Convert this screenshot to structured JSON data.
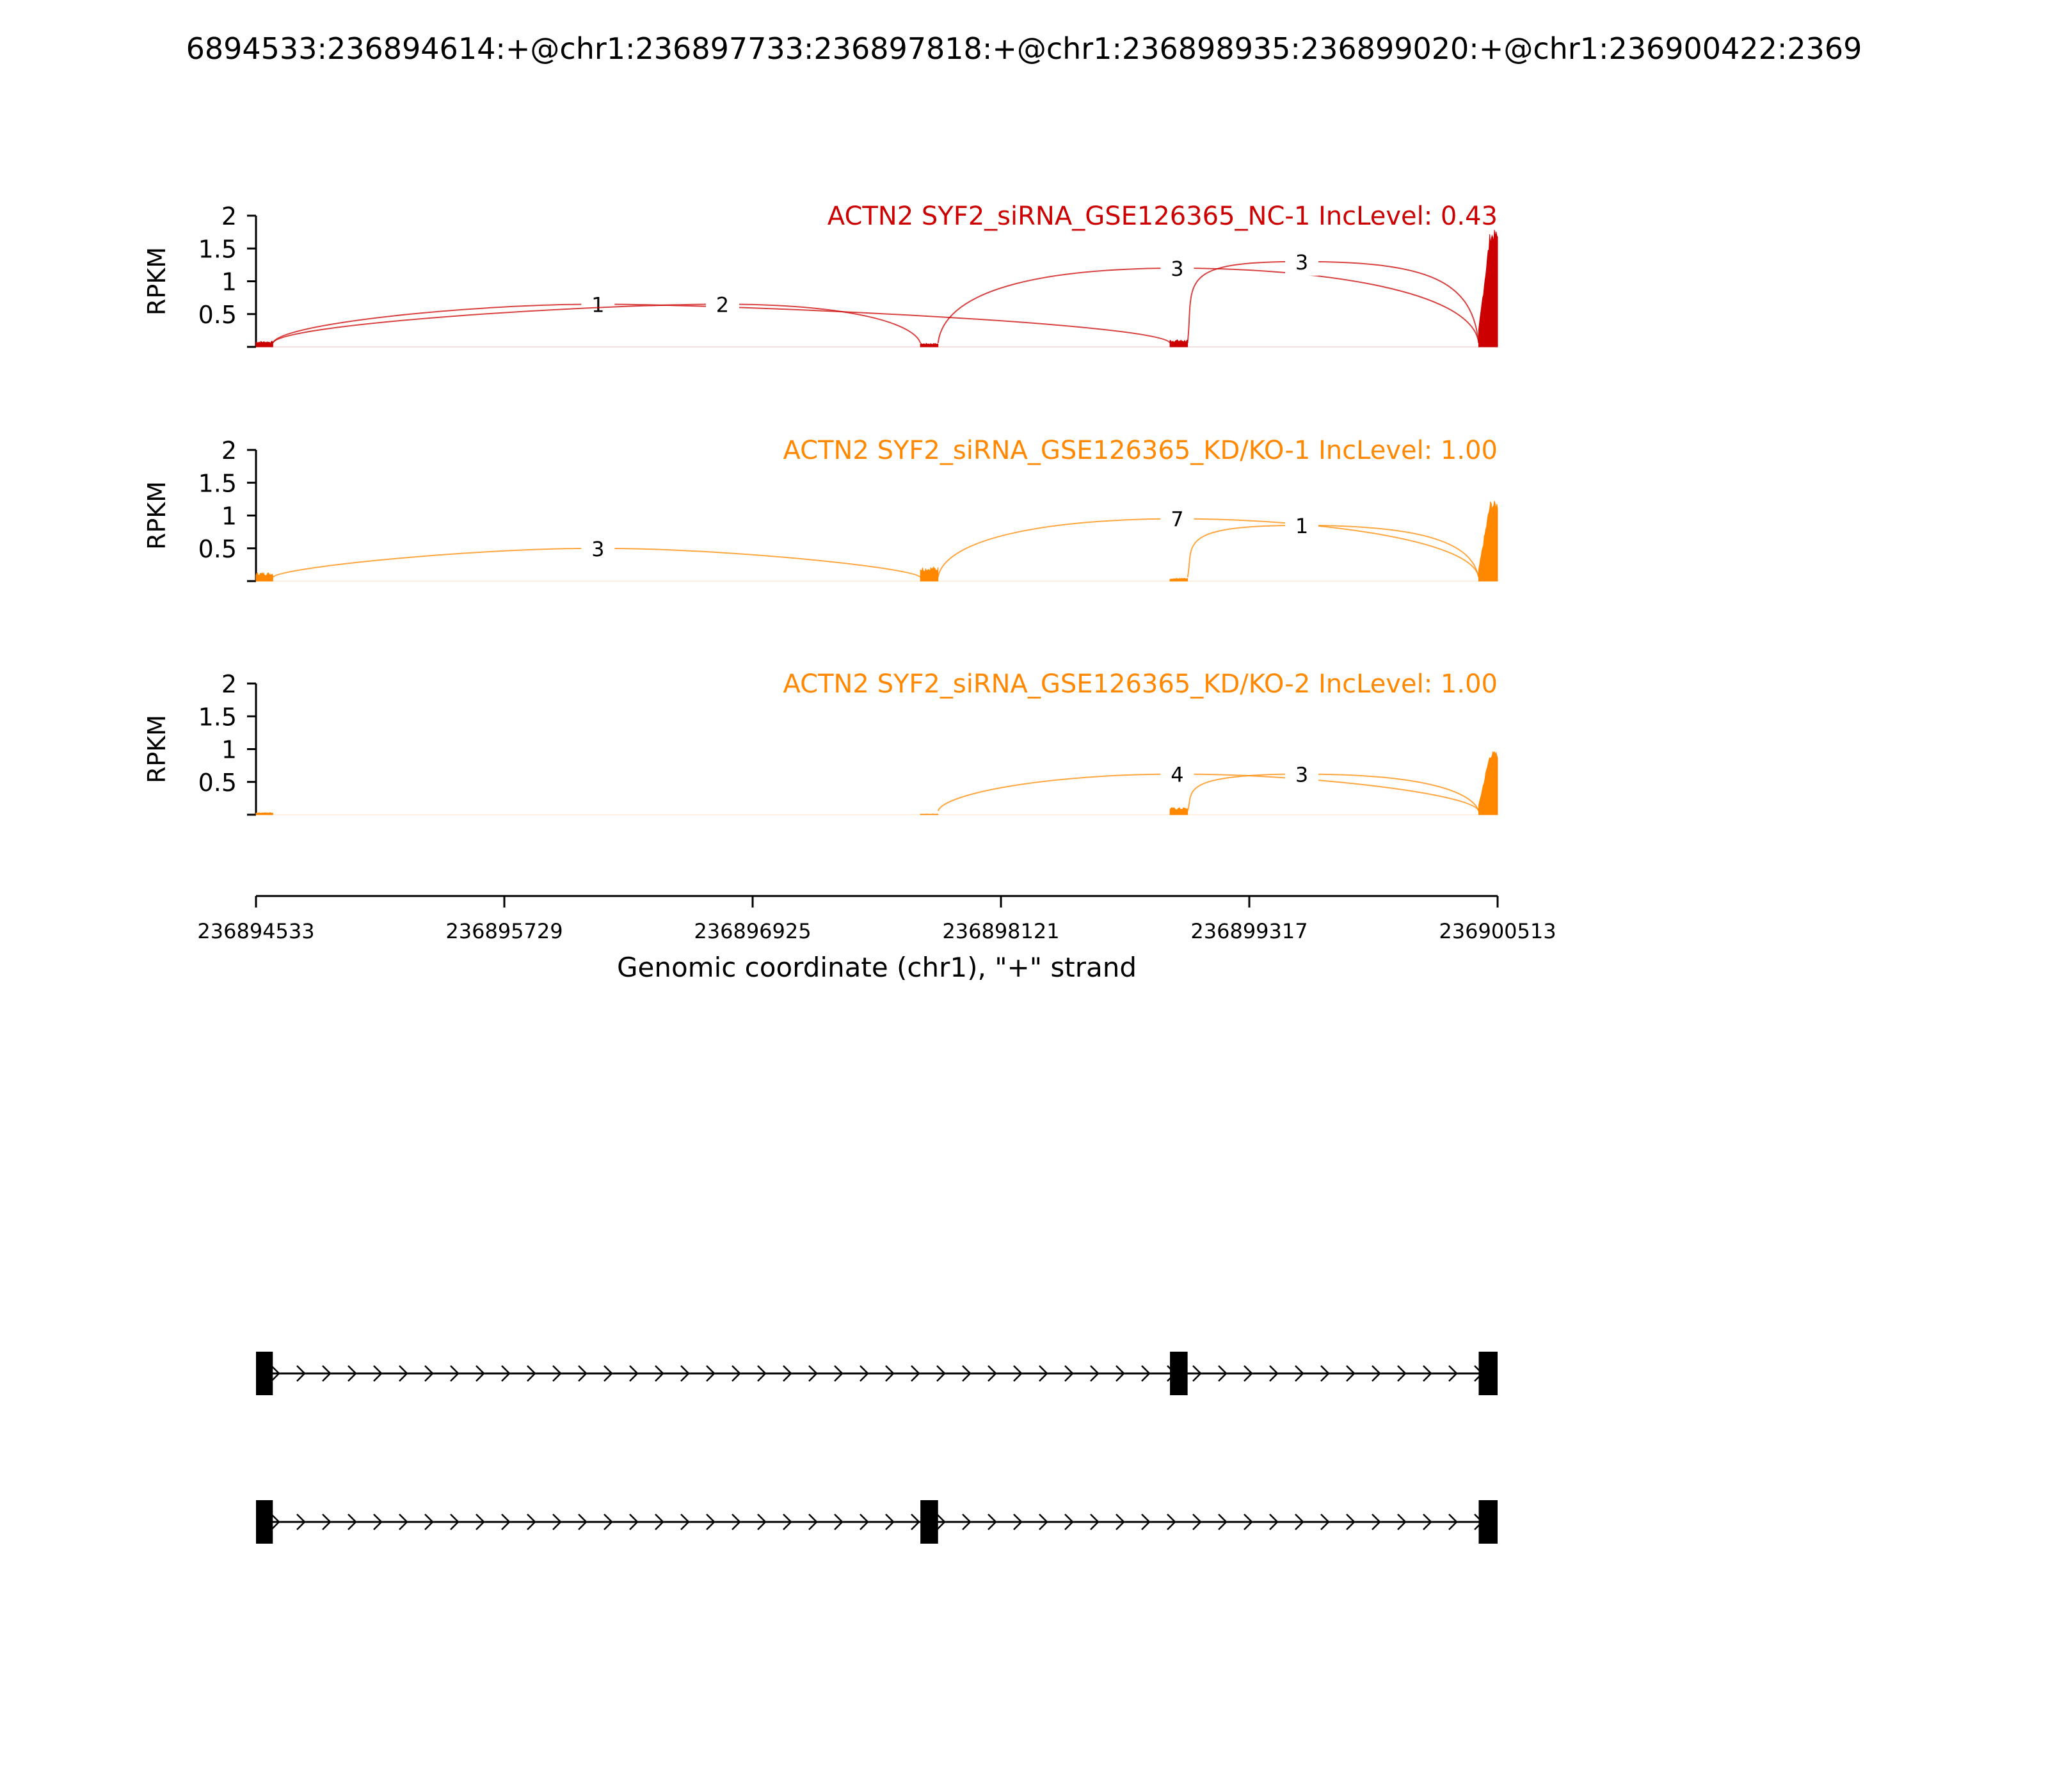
{
  "figure": {
    "title": "6894533:236894614:+@chr1:236897733:236897818:+@chr1:236898935:236899020:+@chr1:236900422:2369"
  },
  "colors": {
    "nc": "#cc0000",
    "kd": "#ff8800",
    "axis": "#000000",
    "exon": "#000000"
  },
  "chart_data": {
    "type": "sashimi",
    "genomic_range": [
      236894533,
      236900513
    ],
    "x_ticks": [
      236894533,
      236895729,
      236896925,
      236898121,
      236899317,
      236900513
    ],
    "xlabel": "Genomic coordinate (chr1), \"+\" strand",
    "ylabel": "RPKM",
    "y_ticks": [
      0.5,
      1,
      1.5,
      2
    ],
    "ylim": [
      0,
      2
    ],
    "exons": [
      {
        "start": 236894533,
        "end": 236894614
      },
      {
        "start": 236897733,
        "end": 236897818
      },
      {
        "start": 236898935,
        "end": 236899020
      },
      {
        "start": 236900422,
        "end": 236900513
      }
    ],
    "tracks": [
      {
        "name": "ACTN2 SYF2_siRNA_GSE126365_NC-1 IncLevel: 0.43",
        "color_key": "nc",
        "coverage": [
          {
            "exon": 0,
            "value": 0.08
          },
          {
            "exon": 1,
            "value": 0.05
          },
          {
            "exon": 2,
            "value": 0.1
          },
          {
            "exon": 3,
            "value": 1.75
          }
        ],
        "junctions": [
          {
            "from": 0,
            "to": 2,
            "count": "1",
            "label_x": 236896180,
            "apex": 0.65
          },
          {
            "from": 0,
            "to": 1,
            "count": "2",
            "label_x": 236896780,
            "apex": 0.65
          },
          {
            "from": 1,
            "to": 3,
            "count": "3",
            "label_x": 236898970,
            "apex": 1.2
          },
          {
            "from": 2,
            "to": 3,
            "count": "3",
            "label_x": 236899570,
            "apex": 1.3
          }
        ]
      },
      {
        "name": "ACTN2 SYF2_siRNA_GSE126365_KD/KO-1 IncLevel: 1.00",
        "color_key": "kd",
        "coverage": [
          {
            "exon": 0,
            "value": 0.12
          },
          {
            "exon": 1,
            "value": 0.2
          },
          {
            "exon": 2,
            "value": 0.04
          },
          {
            "exon": 3,
            "value": 1.2
          }
        ],
        "junctions": [
          {
            "from": 0,
            "to": 1,
            "count": "3",
            "label_x": 236896180,
            "apex": 0.5
          },
          {
            "from": 1,
            "to": 3,
            "count": "7",
            "label_x": 236898970,
            "apex": 0.95
          },
          {
            "from": 2,
            "to": 3,
            "count": "1",
            "label_x": 236899570,
            "apex": 0.85
          }
        ]
      },
      {
        "name": "ACTN2 SYF2_siRNA_GSE126365_KD/KO-2 IncLevel: 1.00",
        "color_key": "kd",
        "coverage": [
          {
            "exon": 0,
            "value": 0.03
          },
          {
            "exon": 1,
            "value": 0.01
          },
          {
            "exon": 2,
            "value": 0.1
          },
          {
            "exon": 3,
            "value": 0.95
          }
        ],
        "junctions": [
          {
            "from": 1,
            "to": 3,
            "count": "4",
            "label_x": 236898970,
            "apex": 0.62
          },
          {
            "from": 2,
            "to": 3,
            "count": "3",
            "label_x": 236899570,
            "apex": 0.62
          }
        ]
      }
    ],
    "isoforms": [
      {
        "exons": [
          0,
          2,
          3
        ]
      },
      {
        "exons": [
          0,
          1,
          3
        ]
      }
    ]
  }
}
